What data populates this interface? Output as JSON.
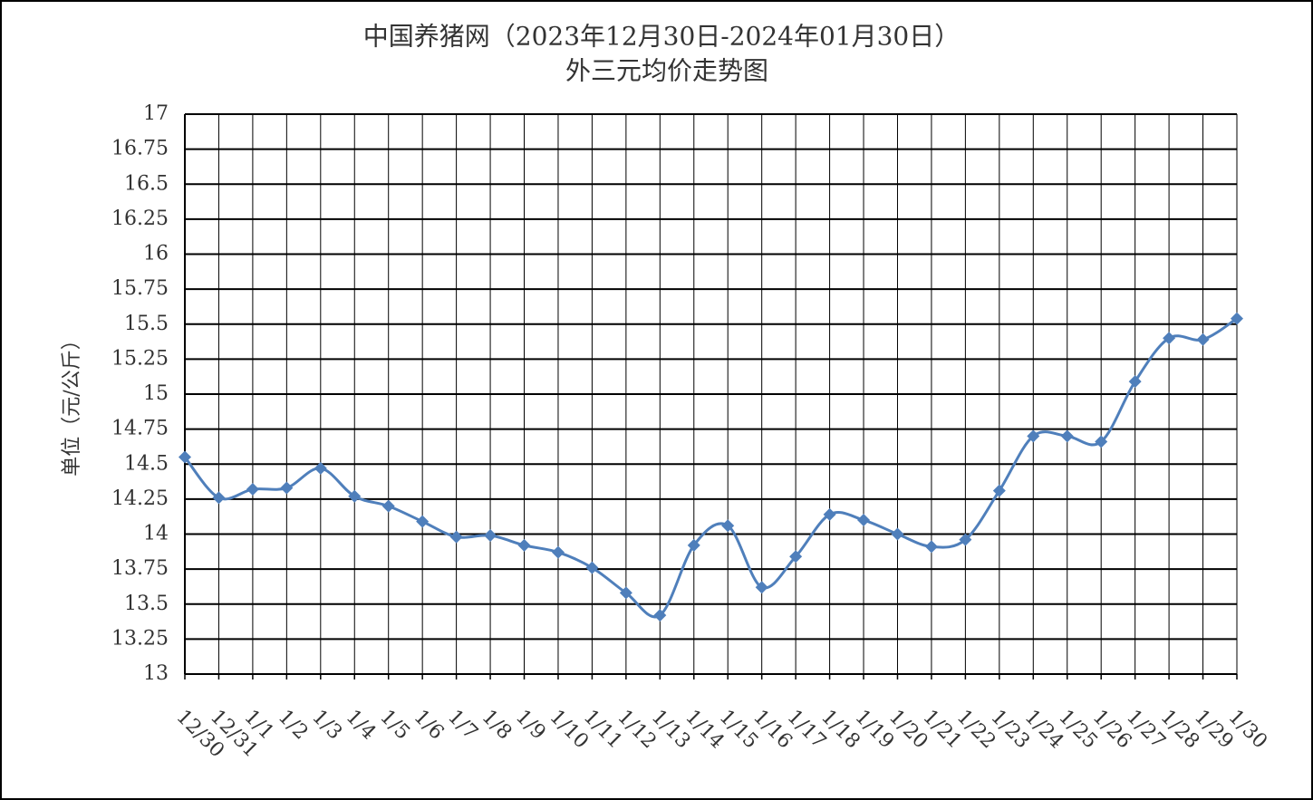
{
  "chart_data": {
    "type": "line",
    "title": "中国养猪网（2023年12月30日-2024年01月30日）",
    "subtitle": "外三元均价走势图",
    "y_label": "单位（元/公斤）",
    "categories": [
      "12/30",
      "12/31",
      "1/1",
      "1/2",
      "1/3",
      "1/4",
      "1/5",
      "1/6",
      "1/7",
      "1/8",
      "1/9",
      "1/10",
      "1/11",
      "1/12",
      "1/13",
      "1/14",
      "1/15",
      "1/16",
      "1/17",
      "1/18",
      "1/19",
      "1/20",
      "1/21",
      "1/22",
      "1/23",
      "1/24",
      "1/25",
      "1/26",
      "1/27",
      "1/28",
      "1/29",
      "1/30"
    ],
    "values": [
      14.55,
      14.26,
      14.32,
      14.33,
      14.47,
      14.27,
      14.2,
      14.09,
      13.98,
      13.99,
      13.92,
      13.87,
      13.76,
      13.58,
      13.42,
      13.92,
      14.06,
      13.62,
      13.84,
      14.14,
      14.1,
      14.0,
      13.91,
      13.96,
      14.31,
      14.7,
      14.7,
      14.66,
      15.09,
      15.4,
      15.39,
      15.54
    ],
    "color": "#4f7fbb",
    "ylim": [
      13,
      17
    ],
    "yticks": [
      13,
      13.25,
      13.5,
      13.75,
      14,
      14.25,
      14.5,
      14.75,
      15,
      15.25,
      15.5,
      15.75,
      16,
      16.25,
      16.5,
      16.75,
      17
    ],
    "grid": true
  }
}
